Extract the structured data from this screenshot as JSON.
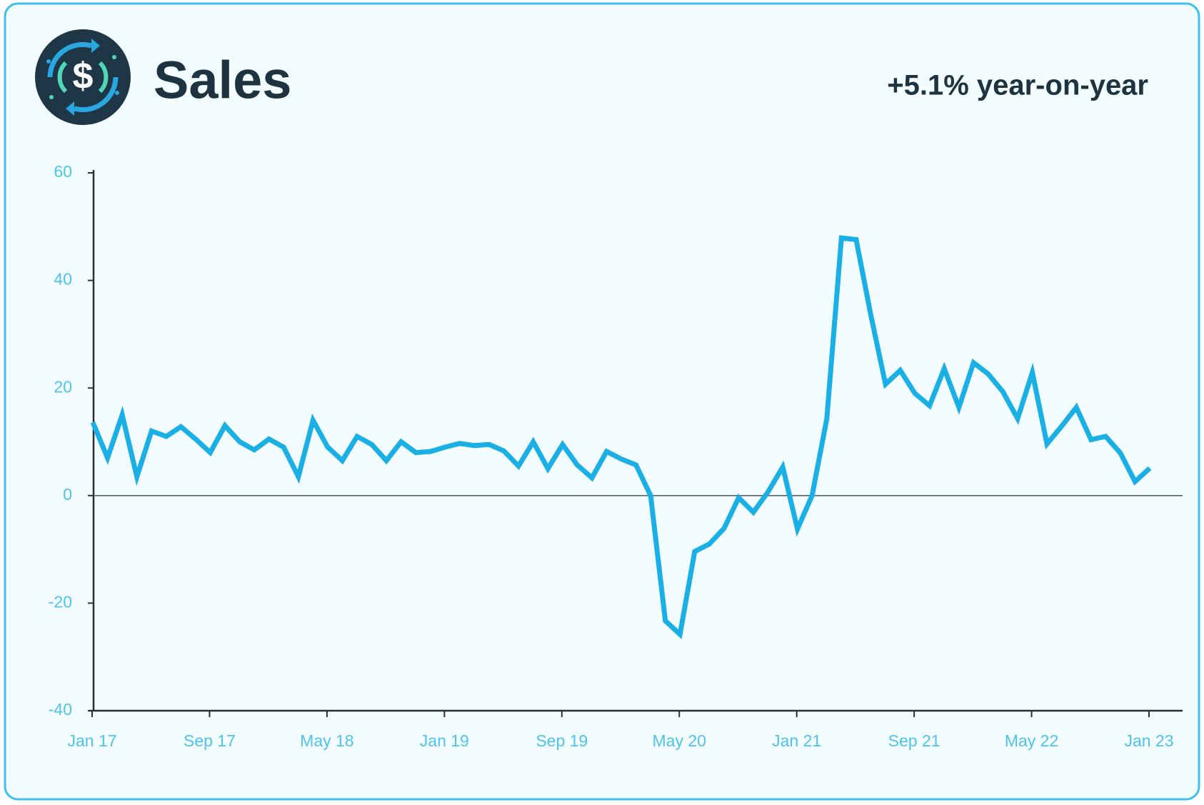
{
  "chart_data": {
    "type": "line",
    "title": "Sales",
    "subtitle": "+5.1% year-on-year",
    "categories": [
      "Jan 17",
      null,
      null,
      null,
      null,
      null,
      null,
      null,
      "Sep 17",
      null,
      null,
      null,
      null,
      null,
      null,
      null,
      "May 18",
      null,
      null,
      null,
      null,
      null,
      null,
      null,
      "Jan 19",
      null,
      null,
      null,
      null,
      null,
      null,
      null,
      "Sep 19",
      null,
      null,
      null,
      null,
      null,
      null,
      null,
      "May 20",
      null,
      null,
      null,
      null,
      null,
      null,
      null,
      "Jan 21",
      null,
      null,
      null,
      null,
      null,
      null,
      null,
      "Sep 21",
      null,
      null,
      null,
      null,
      null,
      null,
      null,
      "May 22",
      null,
      null,
      null,
      null,
      null,
      null,
      null,
      "Jan 23"
    ],
    "values": [
      13.6,
      7,
      15,
      3.5,
      12,
      11,
      12.8,
      10.5,
      8,
      13,
      10,
      8.5,
      10.5,
      9,
      3.5,
      14,
      9,
      6.5,
      11,
      9.5,
      6.5,
      10,
      8,
      8.2,
      9,
      9.7,
      9.3,
      9.5,
      8.3,
      5.5,
      10,
      5,
      9.5,
      5.7,
      3.3,
      8.2,
      6.8,
      5.7,
      0,
      -23.3,
      -25.8,
      -10.4,
      -9,
      -6.1,
      -0.4,
      -3.1,
      0.7,
      5.3,
      -6.2,
      0,
      14.3,
      47.9,
      47.6,
      33.6,
      20.7,
      23.3,
      19,
      16.7,
      23.6,
      16.4,
      24.7,
      22.6,
      19.3,
      14.3,
      22.9,
      9.6,
      12.9,
      16.4,
      10.4,
      11,
      7.9,
      2.6,
      5.1
    ],
    "color": "#1ab0e6",
    "ylim": [
      -40,
      60
    ],
    "yticks": [
      -40,
      -20,
      0,
      20,
      40,
      60
    ],
    "grid": false
  }
}
